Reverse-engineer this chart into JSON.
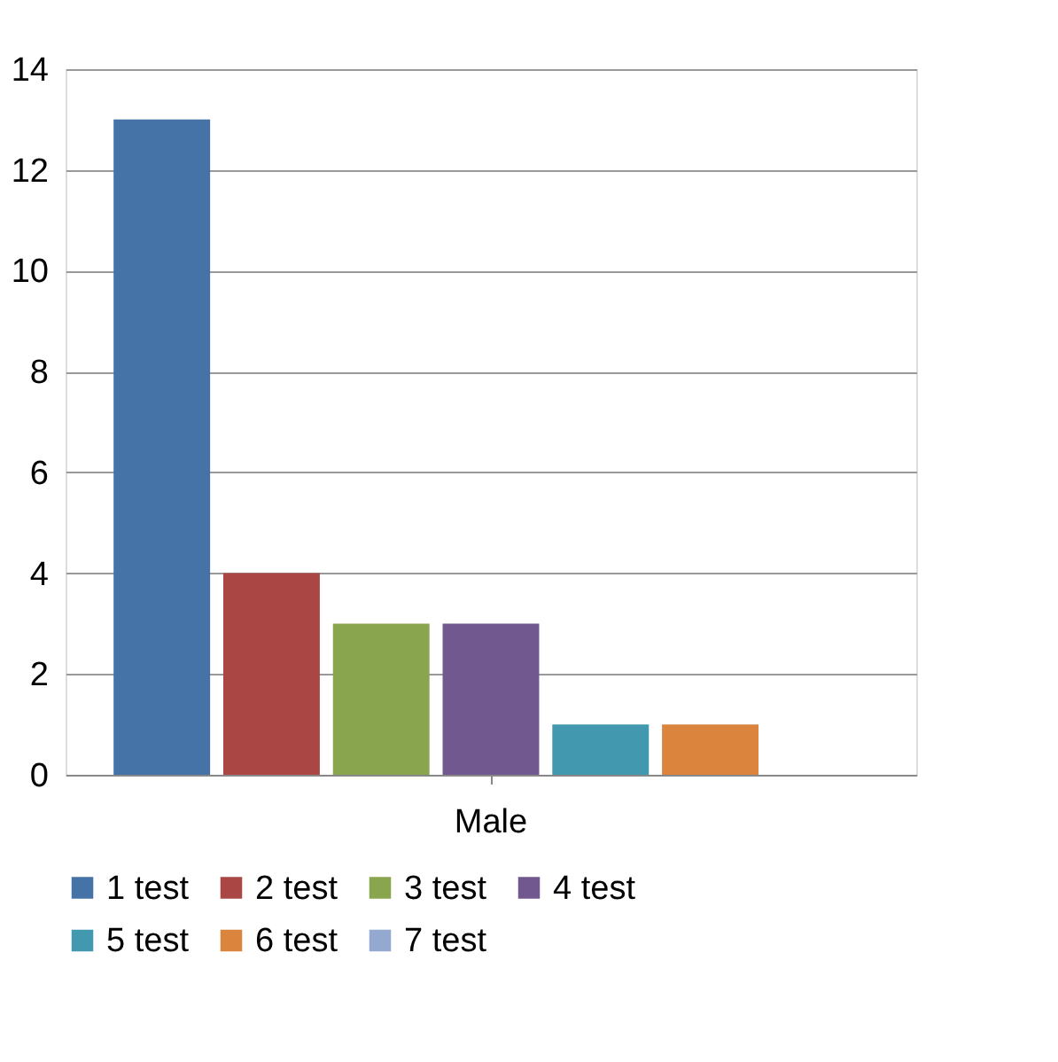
{
  "chart_data": {
    "type": "bar",
    "categories": [
      "Male"
    ],
    "series": [
      {
        "name": "1 test",
        "color": "#4572a7",
        "values": [
          13
        ]
      },
      {
        "name": "2 test",
        "color": "#aa4643",
        "values": [
          4
        ]
      },
      {
        "name": "3 test",
        "color": "#89a54e",
        "values": [
          3
        ]
      },
      {
        "name": "4 test",
        "color": "#71588f",
        "values": [
          3
        ]
      },
      {
        "name": "5 test",
        "color": "#4198af",
        "values": [
          1
        ]
      },
      {
        "name": "6 test",
        "color": "#db843d",
        "values": [
          1
        ]
      },
      {
        "name": "7 test",
        "color": "#93a9cf",
        "values": [
          0
        ]
      }
    ],
    "ylim": [
      0,
      14
    ],
    "yticks": [
      0,
      2,
      4,
      6,
      8,
      10,
      12,
      14
    ],
    "grid": "y",
    "legend": "bottom"
  }
}
